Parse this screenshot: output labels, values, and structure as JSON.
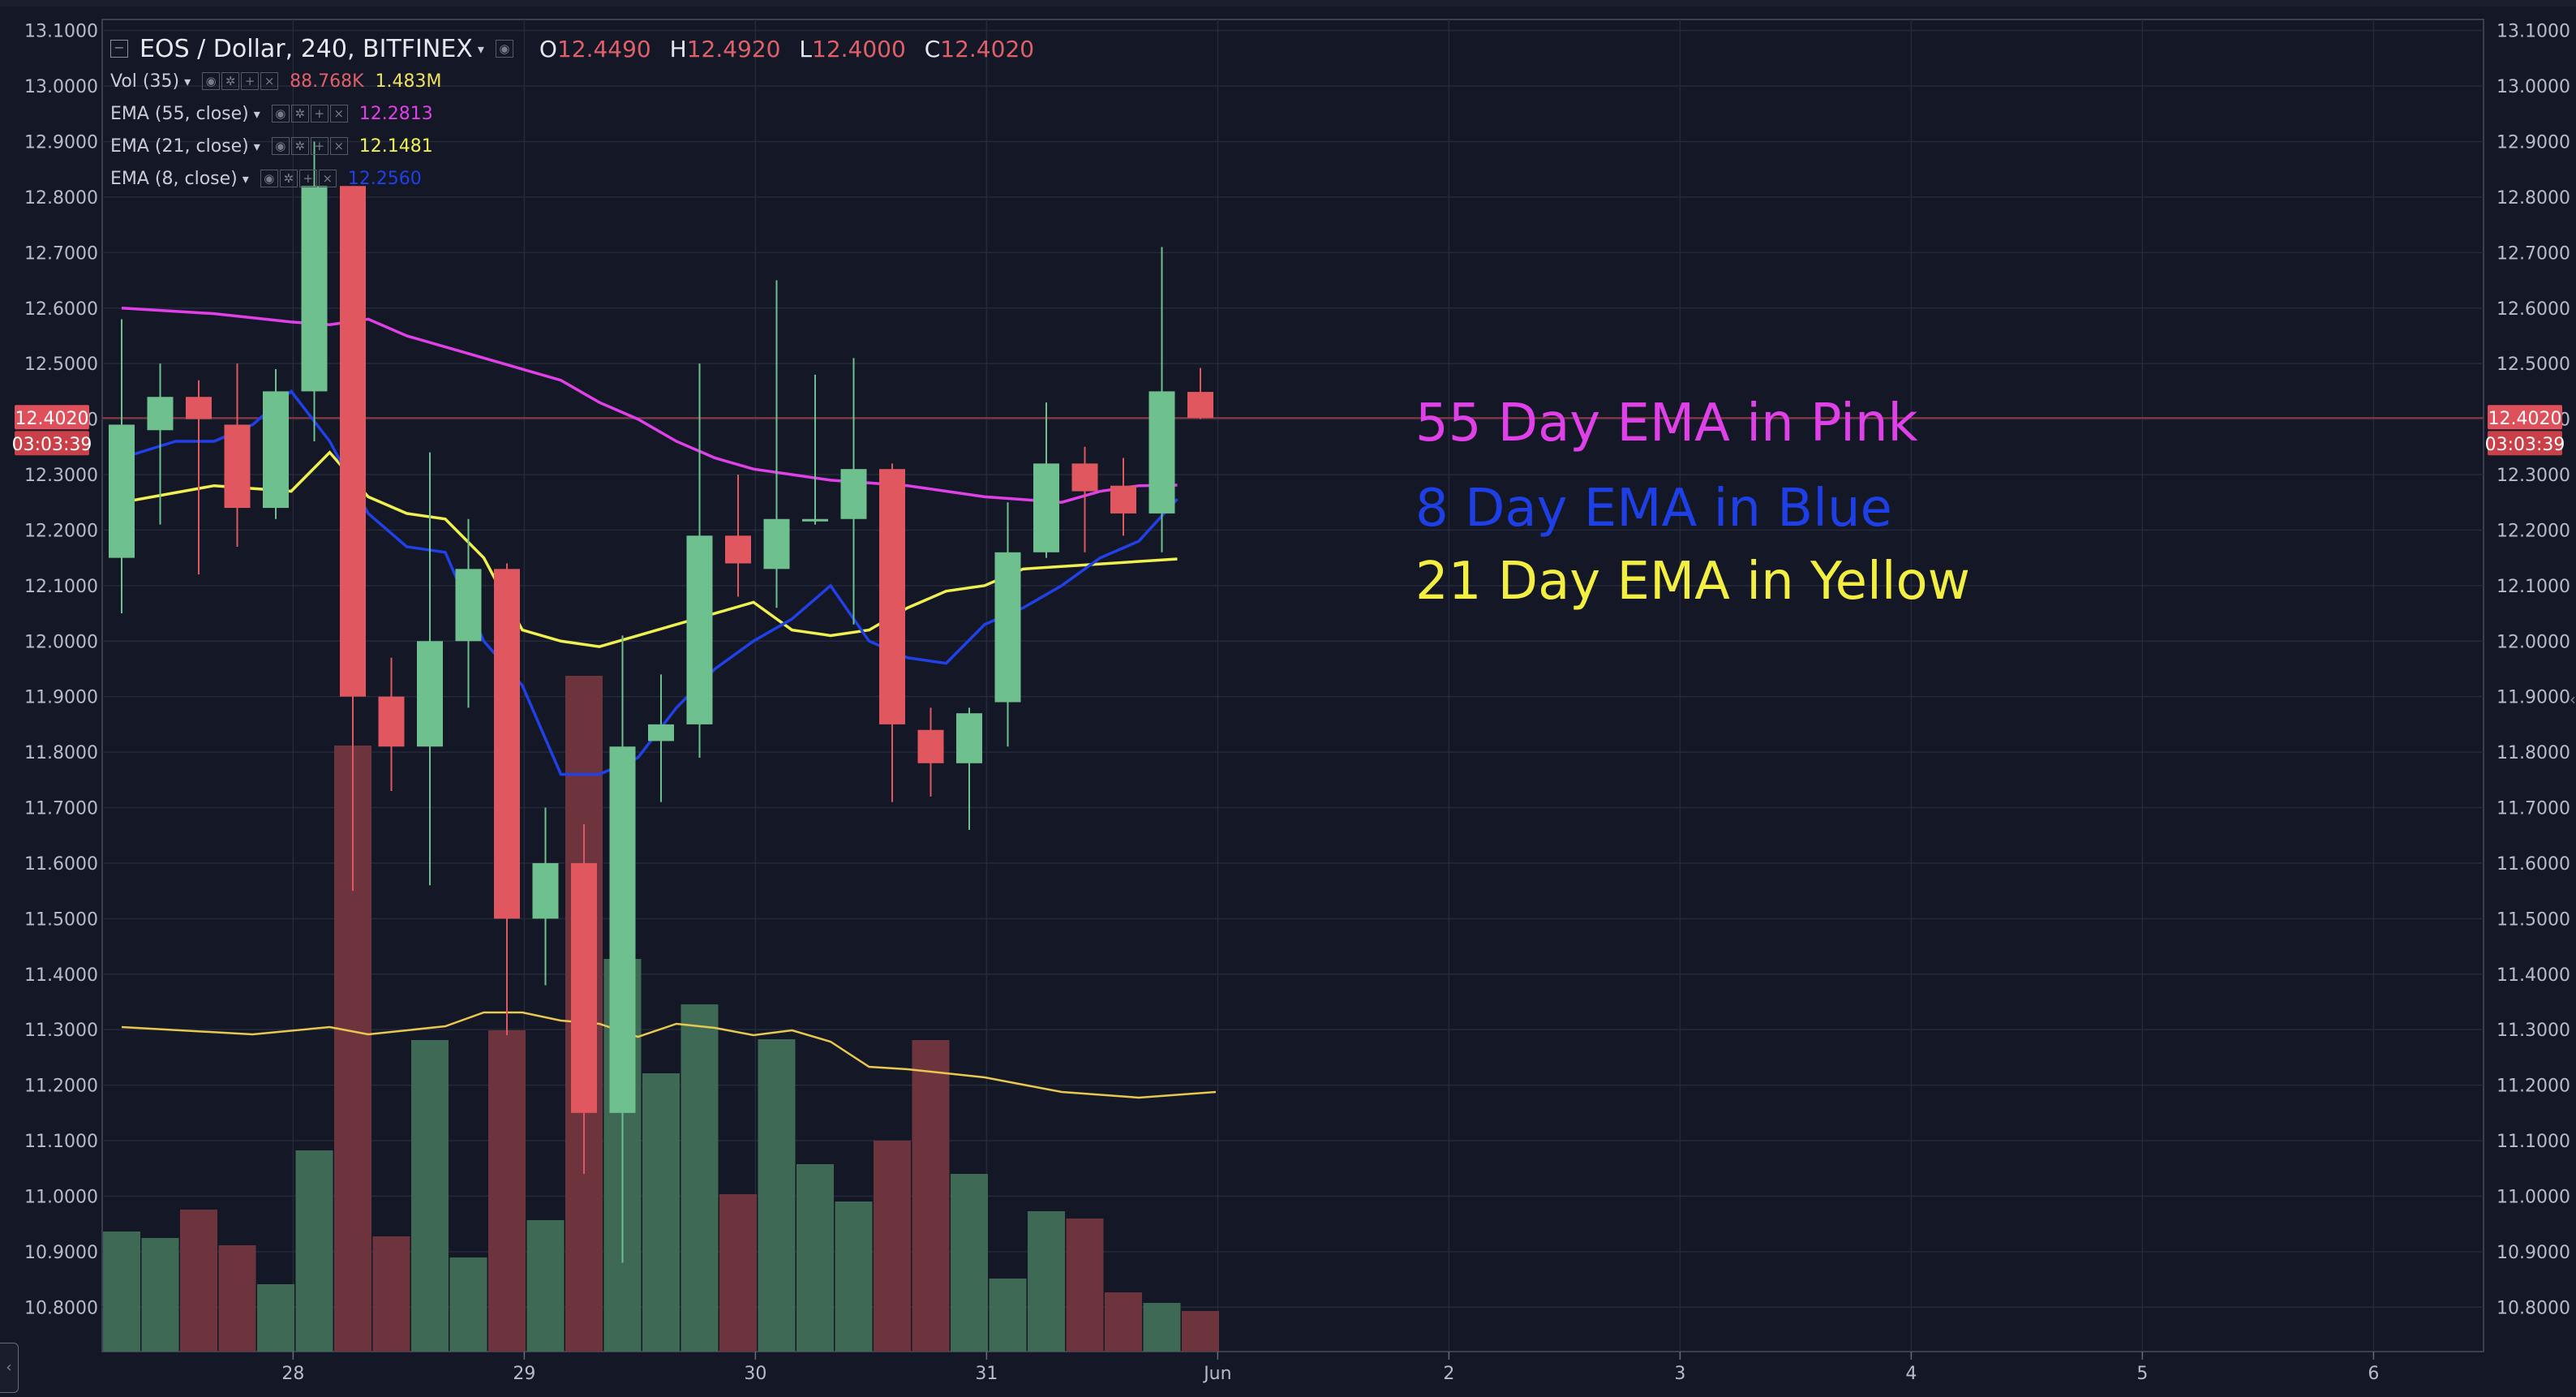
{
  "header": {
    "symbol": "EOS / Dollar, 240, BITFINEX",
    "collapse_icon": "minus-box-icon",
    "ohlc": {
      "o_label": "O",
      "o": "12.4490",
      "h_label": "H",
      "h": "12.4920",
      "l_label": "L",
      "l": "12.4000",
      "c_label": "C",
      "c": "12.4020"
    }
  },
  "indicators": [
    {
      "label": "Vol (35)",
      "value": "88.768K",
      "value2": "1.483M",
      "color": "#e0606a",
      "color2": "#f0e060"
    },
    {
      "label": "EMA (55, close)",
      "value": "12.2813",
      "color": "#e040e8"
    },
    {
      "label": "EMA (21, close)",
      "value": "12.1481",
      "color": "#f0f050"
    },
    {
      "label": "EMA (8, close)",
      "value": "12.2560",
      "color": "#2040e8"
    }
  ],
  "annotations": [
    {
      "text": "55 Day EMA in Pink",
      "color": "#e040e8"
    },
    {
      "text": "8 Day EMA in Blue",
      "color": "#1f3fe6"
    },
    {
      "text": "21 Day EMA in Yellow",
      "color": "#f3ef42"
    }
  ],
  "price_label": {
    "price": "12.4020",
    "countdown": "03:03:39",
    "color": "#e0505a"
  },
  "colors": {
    "bg": "#141725",
    "grid": "#252a3a",
    "up": "#6fc08f",
    "down": "#e0575f",
    "vol_up": "#3e6a55",
    "vol_down": "#6e343d",
    "ema55": "#e040e8",
    "ema21": "#f0f050",
    "ema8": "#2040e8",
    "vol_ma": "#e8c850"
  },
  "chart_data": {
    "type": "candlestick",
    "ylim": [
      10.72,
      13.12
    ],
    "y_ticks": [
      "13.1000",
      "13.0000",
      "12.9000",
      "12.8000",
      "12.7000",
      "12.6000",
      "12.5000",
      "12.4000",
      "12.3000",
      "12.2000",
      "12.1000",
      "12.0000",
      "11.9000",
      "11.8000",
      "11.7000",
      "11.6000",
      "11.5000",
      "11.4000",
      "11.3000",
      "11.2000",
      "11.1000",
      "11.0000",
      "10.9000",
      "10.8000"
    ],
    "x_ticks": [
      {
        "label": "28",
        "i": 4.45
      },
      {
        "label": "29",
        "i": 10.45
      },
      {
        "label": "30",
        "i": 16.45
      },
      {
        "label": "31",
        "i": 22.45
      },
      {
        "label": "Jun",
        "i": 28.45
      },
      {
        "label": "2",
        "i": 34.45
      },
      {
        "label": "3",
        "i": 40.45
      },
      {
        "label": "4",
        "i": 46.45
      },
      {
        "label": "5",
        "i": 52.45
      },
      {
        "label": "6",
        "i": 58.45
      }
    ],
    "candles": [
      {
        "o": 12.15,
        "h": 12.58,
        "l": 12.05,
        "c": 12.39
      },
      {
        "o": 12.38,
        "h": 12.5,
        "l": 12.21,
        "c": 12.44
      },
      {
        "o": 12.44,
        "h": 12.47,
        "l": 12.12,
        "c": 12.4
      },
      {
        "o": 12.39,
        "h": 12.5,
        "l": 12.17,
        "c": 12.24
      },
      {
        "o": 12.24,
        "h": 12.49,
        "l": 12.22,
        "c": 12.45
      },
      {
        "o": 12.45,
        "h": 12.9,
        "l": 12.36,
        "c": 12.82
      },
      {
        "o": 12.82,
        "h": 12.82,
        "l": 11.55,
        "c": 11.9
      },
      {
        "o": 11.9,
        "h": 11.97,
        "l": 11.73,
        "c": 11.81
      },
      {
        "o": 11.81,
        "h": 12.34,
        "l": 11.56,
        "c": 12.0
      },
      {
        "o": 12.0,
        "h": 12.22,
        "l": 11.88,
        "c": 12.13
      },
      {
        "o": 12.13,
        "h": 12.14,
        "l": 11.29,
        "c": 11.5
      },
      {
        "o": 11.5,
        "h": 11.7,
        "l": 11.38,
        "c": 11.6
      },
      {
        "o": 11.6,
        "h": 11.67,
        "l": 11.04,
        "c": 11.15
      },
      {
        "o": 11.15,
        "h": 12.01,
        "l": 10.88,
        "c": 11.81
      },
      {
        "o": 11.82,
        "h": 11.94,
        "l": 11.71,
        "c": 11.85
      },
      {
        "o": 11.85,
        "h": 12.5,
        "l": 11.79,
        "c": 12.19
      },
      {
        "o": 12.19,
        "h": 12.3,
        "l": 12.08,
        "c": 12.14
      },
      {
        "o": 12.13,
        "h": 12.65,
        "l": 12.06,
        "c": 12.22
      },
      {
        "o": 12.22,
        "h": 12.48,
        "l": 12.21,
        "c": 12.22
      },
      {
        "o": 12.22,
        "h": 12.51,
        "l": 12.03,
        "c": 12.31
      },
      {
        "o": 12.31,
        "h": 12.32,
        "l": 11.71,
        "c": 11.85
      },
      {
        "o": 11.84,
        "h": 11.88,
        "l": 11.72,
        "c": 11.78
      },
      {
        "o": 11.78,
        "h": 11.88,
        "l": 11.66,
        "c": 11.87
      },
      {
        "o": 11.89,
        "h": 12.25,
        "l": 11.81,
        "c": 12.16
      },
      {
        "o": 12.16,
        "h": 12.43,
        "l": 12.15,
        "c": 12.32
      },
      {
        "o": 12.32,
        "h": 12.35,
        "l": 12.16,
        "c": 12.27
      },
      {
        "o": 12.28,
        "h": 12.33,
        "l": 12.19,
        "c": 12.23
      },
      {
        "o": 12.23,
        "h": 12.71,
        "l": 12.16,
        "c": 12.45
      },
      {
        "o": 12.449,
        "h": 12.492,
        "l": 12.4,
        "c": 12.402
      }
    ],
    "volume": [
      0.148,
      0.14,
      0.175,
      0.131,
      0.083,
      0.248,
      0.747,
      0.142,
      0.384,
      0.116,
      0.396,
      0.162,
      0.833,
      0.484,
      0.343,
      0.428,
      0.194,
      0.385,
      0.231,
      0.185,
      0.26,
      0.384,
      0.219,
      0.09,
      0.173,
      0.164,
      0.073,
      0.06,
      0.05
    ],
    "vol_ma": [
      0.4,
      0.391,
      0.4,
      0.391,
      0.401,
      0.418,
      0.418,
      0.408,
      0.404,
      0.388,
      0.404,
      0.399,
      0.39,
      0.396,
      0.382,
      0.351,
      0.348,
      0.338,
      0.32,
      0.313,
      0.32
    ],
    "vol_ma_x": [
      0,
      3.4,
      5.4,
      6.4,
      8.4,
      9.4,
      10.4,
      11.4,
      12.4,
      13.4,
      14.4,
      15.4,
      16.4,
      17.4,
      18.4,
      19.4,
      20.4,
      22.4,
      24.4,
      26.4,
      28.4
    ],
    "ema55": [
      12.6,
      12.59,
      12.575,
      12.57,
      12.58,
      12.55,
      12.51,
      12.49,
      12.47,
      12.43,
      12.4,
      12.36,
      12.33,
      12.31,
      12.3,
      12.29,
      12.285,
      12.28,
      12.27,
      12.26,
      12.255,
      12.25,
      12.27,
      12.28,
      12.281
    ],
    "ema55_x": [
      0,
      2.4,
      4.4,
      5.4,
      6.4,
      7.4,
      9.4,
      10.4,
      11.4,
      12.4,
      13.4,
      14.4,
      15.4,
      16.4,
      17.4,
      18.4,
      19.4,
      20.4,
      21.4,
      22.4,
      23.4,
      24.4,
      25.4,
      26.4,
      27.4
    ],
    "ema21": [
      12.25,
      12.28,
      12.27,
      12.34,
      12.26,
      12.23,
      12.22,
      12.15,
      12.02,
      12.0,
      11.99,
      12.01,
      12.03,
      12.05,
      12.07,
      12.02,
      12.01,
      12.02,
      12.06,
      12.09,
      12.1,
      12.13,
      12.148
    ],
    "ema21_x": [
      0,
      2.4,
      4.4,
      5.4,
      6.4,
      7.4,
      8.4,
      9.4,
      10.4,
      11.4,
      12.4,
      13.4,
      14.4,
      15.4,
      16.4,
      17.4,
      18.4,
      19.4,
      20.4,
      21.4,
      22.4,
      23.4,
      27.4
    ],
    "ema8": [
      12.33,
      12.36,
      12.36,
      12.39,
      12.45,
      12.36,
      12.23,
      12.17,
      12.16,
      12.0,
      11.92,
      11.76,
      11.76,
      11.79,
      11.88,
      11.95,
      12.0,
      12.04,
      12.1,
      12.0,
      11.97,
      11.96,
      12.03,
      12.06,
      12.1,
      12.15,
      12.18,
      12.256
    ],
    "ema8_x": [
      0,
      1.4,
      2.4,
      3.4,
      4.4,
      5.4,
      6.4,
      7.4,
      8.4,
      9.4,
      10.4,
      11.4,
      12.4,
      13.4,
      14.4,
      15.4,
      16.4,
      17.4,
      18.4,
      19.4,
      20.4,
      21.4,
      22.4,
      23.4,
      24.4,
      25.4,
      26.4,
      27.4
    ]
  }
}
